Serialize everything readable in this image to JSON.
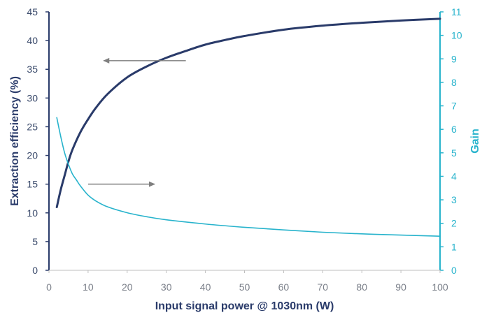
{
  "chart_data": {
    "type": "line",
    "xlabel": "Input signal power @ 1030nm (W)",
    "ylabel_left": "Extraction efficiency (%)",
    "ylabel_right": "Gain",
    "xlim": [
      0,
      100
    ],
    "ylim_left": [
      0,
      45
    ],
    "ylim_right": [
      0,
      11
    ],
    "x_ticks": [
      "0",
      "10",
      "20",
      "30",
      "40",
      "50",
      "60",
      "70",
      "80",
      "90",
      "100"
    ],
    "y_left_ticks": [
      "0",
      "5",
      "10",
      "15",
      "20",
      "25",
      "30",
      "35",
      "40",
      "45"
    ],
    "y_right_ticks": [
      "0",
      "1",
      "2",
      "3",
      "4",
      "5",
      "6",
      "7",
      "8",
      "9",
      "10",
      "11"
    ],
    "grid": false,
    "colors": {
      "efficiency": "#2a3b6a",
      "gain": "#27b3cc",
      "arrow": "#7f7f7f",
      "axis_left": "#2a3b6a",
      "axis_right": "#27b3cc"
    },
    "series": [
      {
        "axis": "left",
        "x": [
          2,
          3,
          4,
          5,
          6,
          8,
          10,
          12,
          15,
          20,
          25,
          30,
          35,
          40,
          45,
          50,
          60,
          70,
          80,
          90,
          100
        ],
        "values": [
          11,
          14,
          16.5,
          19,
          21,
          24,
          26.3,
          28.3,
          30.7,
          33.6,
          35.5,
          37.0,
          38.2,
          39.3,
          40.1,
          40.8,
          41.9,
          42.6,
          43.1,
          43.5,
          43.8
        ]
      },
      {
        "axis": "right",
        "x": [
          2,
          3,
          4,
          5,
          6,
          7,
          8,
          10,
          12,
          15,
          20,
          25,
          30,
          40,
          50,
          60,
          70,
          80,
          90,
          100
        ],
        "values": [
          6.5,
          5.7,
          5.0,
          4.5,
          4.1,
          3.85,
          3.6,
          3.2,
          2.95,
          2.7,
          2.45,
          2.28,
          2.15,
          1.97,
          1.83,
          1.72,
          1.62,
          1.55,
          1.5,
          1.45
        ]
      }
    ],
    "arrows": [
      {
        "direction": "left",
        "from": [
          35,
          36.5
        ],
        "to": [
          14,
          36.5
        ],
        "axis": "left"
      },
      {
        "direction": "right",
        "from": [
          10,
          15
        ],
        "to": [
          27,
          15
        ],
        "axis": "left"
      }
    ]
  }
}
